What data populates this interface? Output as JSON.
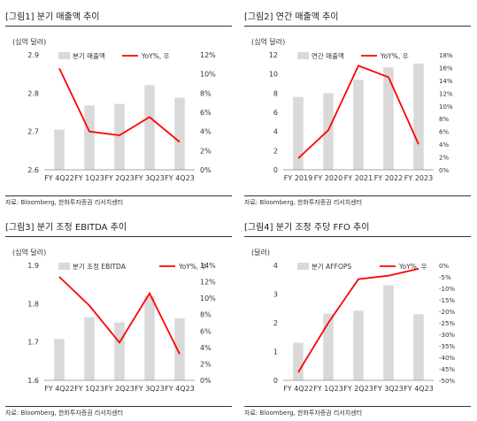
{
  "chart_data": [
    {
      "type": "bar",
      "title": "[그림1] 분기 매출액 추이",
      "unit_label": "(십억 달러)",
      "source": "자료: Bloomberg, 한화투자증권 리서치센터",
      "categories": [
        "FY 4Q22",
        "FY 1Q23",
        "FY 2Q23",
        "FY 3Q23",
        "FY 4Q23"
      ],
      "series": [
        {
          "name": "분기 매출액",
          "kind": "bar",
          "axis": "left",
          "color": "#d9d9d9",
          "values": [
            2.705,
            2.768,
            2.772,
            2.821,
            2.788
          ]
        },
        {
          "name": "YoY%, 우",
          "kind": "line",
          "axis": "right",
          "color": "#ff0000",
          "values": [
            10.6,
            4.0,
            3.6,
            5.5,
            2.9
          ]
        }
      ],
      "ylim_left": [
        2.6,
        2.9
      ],
      "yticks_left": [
        "2.6",
        "2.7",
        "2.8",
        "2.9"
      ],
      "ylim_right": [
        0,
        12
      ],
      "yticks_right": [
        "0%",
        "2%",
        "4%",
        "6%",
        "8%",
        "10%",
        "12%"
      ]
    },
    {
      "type": "bar",
      "title": "[그림2] 연간 매출액 추이",
      "unit_label": "(십억 달러)",
      "source": "자료: Bloomberg, 한화투자증권 리서치센터",
      "categories": [
        "FY 2019",
        "FY 2020",
        "FY 2021",
        "FY 2022",
        "FY 2023"
      ],
      "series": [
        {
          "name": "연간 매출액",
          "kind": "bar",
          "axis": "left",
          "color": "#d9d9d9",
          "values": [
            7.6,
            8.0,
            9.4,
            10.7,
            11.1
          ]
        },
        {
          "name": "YoY%, 우",
          "kind": "line",
          "axis": "right",
          "color": "#ff0000",
          "values": [
            1.8,
            6.2,
            16.3,
            14.5,
            4.0
          ]
        }
      ],
      "ylim_left": [
        0,
        12
      ],
      "yticks_left": [
        "0",
        "2",
        "4",
        "6",
        "8",
        "10",
        "12"
      ],
      "ylim_right": [
        0,
        18
      ],
      "yticks_right": [
        "0%",
        "2%",
        "4%",
        "6%",
        "8%",
        "10%",
        "12%",
        "14%",
        "16%",
        "18%"
      ]
    },
    {
      "type": "bar",
      "title": "[그림3] 분기 조정 EBITDA 추이",
      "unit_label": "(십억 달러)",
      "source": "자료: Bloomberg, 한화투자증권 리서치센터",
      "categories": [
        "FY 4Q22",
        "FY 1Q23",
        "FY 2Q23",
        "FY 3Q23",
        "FY 4Q23"
      ],
      "series": [
        {
          "name": "분기 조정 EBITDA",
          "kind": "bar",
          "axis": "left",
          "color": "#d9d9d9",
          "values": [
            1.708,
            1.765,
            1.751,
            1.82,
            1.762
          ]
        },
        {
          "name": "YoY%, 우",
          "kind": "line",
          "axis": "right",
          "color": "#ff0000",
          "values": [
            12.6,
            9.1,
            4.6,
            10.6,
            3.2
          ]
        }
      ],
      "ylim_left": [
        1.6,
        1.9
      ],
      "yticks_left": [
        "1.6",
        "1.7",
        "1.8",
        "1.9"
      ],
      "ylim_right": [
        0,
        14
      ],
      "yticks_right": [
        "0%",
        "2%",
        "4%",
        "6%",
        "8%",
        "10%",
        "12%",
        "14%"
      ]
    },
    {
      "type": "bar",
      "title": "[그림4] 분기 조정 주당 FFO 추이",
      "unit_label": "(달러)",
      "source": "자료: Bloomberg, 한화투자증권 리서치센터",
      "categories": [
        "FY 4Q22",
        "FY 1Q23",
        "FY 2Q23",
        "FY 3Q23",
        "FY 4Q23"
      ],
      "series": [
        {
          "name": "분기 AFFOPS",
          "kind": "bar",
          "axis": "left",
          "color": "#d9d9d9",
          "values": [
            1.31,
            2.32,
            2.42,
            3.31,
            2.3
          ]
        },
        {
          "name": "YoY%, 우",
          "kind": "line",
          "axis": "right",
          "color": "#ff0000",
          "values": [
            -46.5,
            -25.0,
            -6.0,
            -4.5,
            -1.5
          ]
        }
      ],
      "ylim_left": [
        0,
        4
      ],
      "yticks_left": [
        "0",
        "1",
        "2",
        "3",
        "4"
      ],
      "ylim_right": [
        -50,
        0
      ],
      "yticks_right": [
        "-50%",
        "-45%",
        "-40%",
        "-35%",
        "-30%",
        "-25%",
        "-20%",
        "-15%",
        "-10%",
        "-5%",
        "0%"
      ]
    }
  ]
}
